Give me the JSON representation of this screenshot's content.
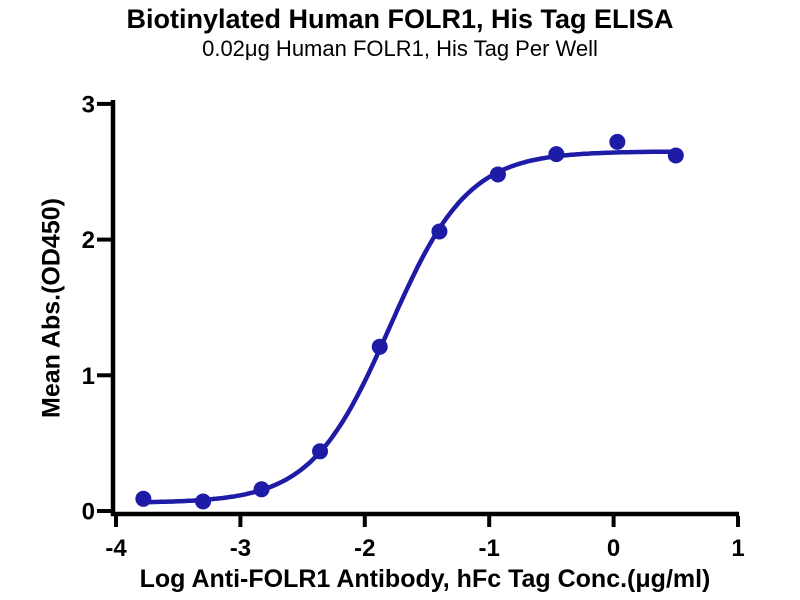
{
  "chart_data": {
    "type": "scatter",
    "title": "Biotinylated Human FOLR1, His Tag ELISA",
    "subtitle": "0.02μg Human FOLR1, His Tag Per Well",
    "xlabel": "Log Anti-FOLR1 Antibody, hFc Tag Conc.(μg/ml)",
    "ylabel": "Mean Abs.(OD450)",
    "xlim": [
      -4,
      1
    ],
    "ylim": [
      0,
      3
    ],
    "x_ticks": [
      -4,
      -3,
      -2,
      -1,
      0,
      1
    ],
    "y_ticks": [
      0,
      1,
      2,
      3
    ],
    "grid": false,
    "legend": "none",
    "series": [
      {
        "name": "Anti-FOLR1 Antibody, hFc Tag",
        "marker": "circle",
        "color": "#1e1ca6",
        "points": [
          {
            "x": -3.78,
            "y": 0.09
          },
          {
            "x": -3.3,
            "y": 0.07
          },
          {
            "x": -2.83,
            "y": 0.16
          },
          {
            "x": -2.36,
            "y": 0.44
          },
          {
            "x": -1.88,
            "y": 1.21
          },
          {
            "x": -1.4,
            "y": 2.06
          },
          {
            "x": -0.93,
            "y": 2.48
          },
          {
            "x": -0.46,
            "y": 2.63
          },
          {
            "x": 0.03,
            "y": 2.72
          },
          {
            "x": 0.5,
            "y": 2.62
          }
        ]
      }
    ],
    "curve_fit": {
      "model": "4PL",
      "bottom": 0.06,
      "top": 2.65,
      "log_ec50": -1.8,
      "hill": 1.38,
      "x_start": -3.78,
      "x_end": 0.5
    },
    "colors": {
      "curve": "#1e1ca6",
      "axis": "#000000",
      "background": "#ffffff"
    }
  }
}
